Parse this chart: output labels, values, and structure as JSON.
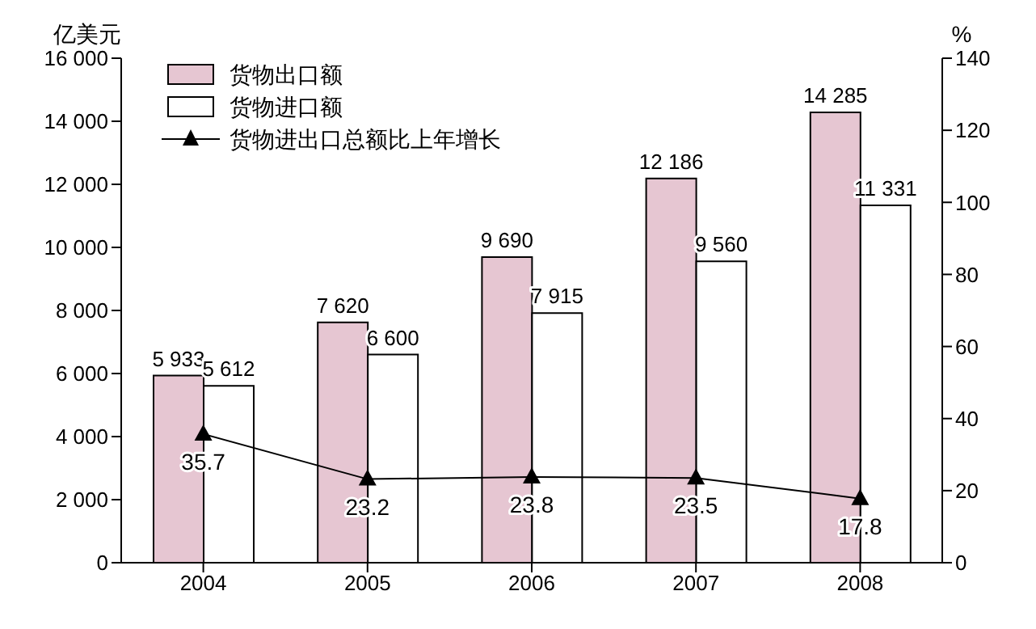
{
  "chart_data": {
    "type": "bar",
    "ylabel": "亿美元",
    "y2label": "%",
    "categories": [
      "2004",
      "2005",
      "2006",
      "2007",
      "2008"
    ],
    "series": [
      {
        "name": "货物出口额",
        "color": "#e6c6d2",
        "values": [
          5933,
          7620,
          9690,
          12186,
          14285
        ],
        "value_labels": [
          "5 933",
          "7 620",
          "9 690",
          "12 186",
          "14 285"
        ]
      },
      {
        "name": "货物进口额",
        "color": "#ffffff",
        "values": [
          5612,
          6600,
          7915,
          9560,
          11331
        ],
        "value_labels": [
          "5 612",
          "6 600",
          "7 915",
          "9 560",
          "11 331"
        ]
      },
      {
        "name": "货物进出口总额比上年增长",
        "type": "line",
        "axis": "y2",
        "color": "#000000",
        "values": [
          35.7,
          23.2,
          23.8,
          23.5,
          17.8
        ],
        "value_labels": [
          "35.7",
          "23.2",
          "23.8",
          "23.5",
          "17.8"
        ]
      }
    ],
    "ylim": [
      0,
      16000
    ],
    "yticks": [
      0,
      {
        "value": 2000,
        "label": "2 000"
      },
      {
        "value": 4000,
        "label": "4 000"
      },
      {
        "value": 6000,
        "label": "6 000"
      },
      {
        "value": 8000,
        "label": "8 000"
      },
      {
        "value": 10000,
        "label": "10 000"
      },
      {
        "value": 12000,
        "label": "12 000"
      },
      {
        "value": 14000,
        "label": "14 000"
      },
      {
        "value": 16000,
        "label": "16 000"
      }
    ],
    "y2lim": [
      0,
      140
    ],
    "y2ticks": [
      0,
      20,
      40,
      60,
      80,
      100,
      120,
      140
    ],
    "legend": "top left",
    "marker": "triangle",
    "grid": false
  }
}
